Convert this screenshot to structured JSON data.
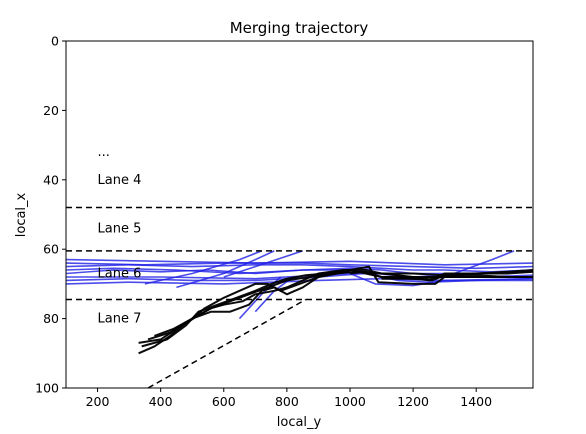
{
  "chart_data": {
    "type": "line",
    "title": "Merging trajectory",
    "xlabel": "local_y",
    "ylabel": "local_x",
    "xlim": [
      100,
      1580
    ],
    "ylim": [
      100,
      0
    ],
    "y_inverted": true,
    "x_ticks": [
      200,
      400,
      600,
      800,
      1000,
      1200,
      1400
    ],
    "y_ticks": [
      0,
      20,
      40,
      60,
      80,
      100
    ],
    "grid": false,
    "lane_boundaries": [
      48,
      60.5,
      74.5
    ],
    "ramp_edge": {
      "x": [
        360,
        860
      ],
      "y": [
        100,
        74.5
      ]
    },
    "lane_labels": [
      {
        "text": "...",
        "x": 200,
        "y": 32
      },
      {
        "text": "Lane 4",
        "x": 200,
        "y": 40
      },
      {
        "text": "Lane 5",
        "x": 200,
        "y": 54
      },
      {
        "text": "Lane 6",
        "x": 200,
        "y": 67
      },
      {
        "text": "Lane 7",
        "x": 200,
        "y": 80
      }
    ],
    "colors": {
      "mainline": "#1f1fe6",
      "merging": "#000000",
      "boundary": "#000000"
    },
    "series": [
      {
        "group": "mainline",
        "x": [
          100,
          250,
          400,
          550,
          700,
          850,
          1000,
          1080,
          1200,
          1300,
          1400,
          1580
        ],
        "y": [
          67,
          66,
          66.5,
          66,
          67,
          66,
          66,
          67,
          68,
          67.5,
          68,
          67.5
        ]
      },
      {
        "group": "mainline",
        "x": [
          100,
          300,
          500,
          700,
          850,
          1000,
          1100,
          1200,
          1300,
          1450,
          1580
        ],
        "y": [
          65,
          64.5,
          65,
          64.5,
          64.5,
          65,
          65.5,
          66,
          66,
          66.5,
          66
        ]
      },
      {
        "group": "mainline",
        "x": [
          100,
          300,
          500,
          700,
          900,
          1050,
          1150,
          1250,
          1400,
          1580
        ],
        "y": [
          69,
          68.5,
          69,
          69,
          68,
          67,
          69,
          69.5,
          69,
          68.5
        ]
      },
      {
        "group": "mainline",
        "x": [
          100,
          250,
          450,
          650,
          850,
          1000,
          1100,
          1200,
          1350,
          1580
        ],
        "y": [
          66,
          65.5,
          66,
          67,
          66,
          65.5,
          66,
          67,
          67,
          66.5
        ]
      },
      {
        "group": "mainline",
        "x": [
          100,
          400,
          700,
          1000,
          1080,
          1200,
          1300,
          1580
        ],
        "y": [
          68,
          68,
          68.5,
          67,
          70,
          70.5,
          69,
          68.5
        ]
      },
      {
        "group": "mainline",
        "x": [
          100,
          350,
          600,
          850,
          1000,
          1200,
          1400,
          1580
        ],
        "y": [
          64,
          64.5,
          64,
          64,
          64.5,
          65,
          65.5,
          65
        ]
      },
      {
        "group": "mainline",
        "x": [
          100,
          300,
          600,
          900,
          1100,
          1300,
          1580
        ],
        "y": [
          70,
          69.5,
          70,
          69,
          68.5,
          69,
          69
        ]
      },
      {
        "group": "mainline",
        "x": [
          100,
          400,
          700,
          1000,
          1300,
          1580
        ],
        "y": [
          63,
          63.5,
          64,
          63.5,
          64.5,
          64
        ]
      },
      {
        "group": "mainline",
        "x": [
          350,
          500,
          650,
          720
        ],
        "y": [
          70,
          67,
          63,
          60.5
        ]
      },
      {
        "group": "mainline",
        "x": [
          450,
          600,
          700,
          760
        ],
        "y": [
          71,
          67,
          63,
          60.5
        ]
      },
      {
        "group": "mainline",
        "x": [
          600,
          700,
          800,
          850
        ],
        "y": [
          68,
          65,
          62,
          60.5
        ]
      },
      {
        "group": "mainline",
        "x": [
          1300,
          1450,
          1520
        ],
        "y": [
          68,
          63,
          60.5
        ]
      },
      {
        "group": "mainline",
        "x": [
          650,
          720,
          780
        ],
        "y": [
          80,
          73,
          68
        ]
      },
      {
        "group": "mainline",
        "x": [
          700,
          760,
          820
        ],
        "y": [
          78,
          72,
          68
        ]
      },
      {
        "group": "merging",
        "x": [
          330,
          380,
          430,
          470,
          520,
          560,
          600,
          660,
          700,
          760,
          800,
          850,
          900,
          980,
          1050,
          1100,
          1200,
          1300,
          1400,
          1500,
          1580
        ],
        "y": [
          90,
          88,
          85,
          82,
          79,
          77,
          76,
          75,
          73,
          72,
          71,
          69,
          67,
          66,
          66,
          67,
          67,
          67.5,
          67,
          67,
          66.5
        ]
      },
      {
        "group": "merging",
        "x": [
          330,
          400,
          450,
          500,
          560,
          620,
          680,
          740,
          800,
          870,
          950,
          1020,
          1100,
          1200,
          1300,
          1400,
          1500,
          1580
        ],
        "y": [
          87,
          86,
          83,
          80,
          77,
          75,
          73,
          71,
          69,
          68,
          67,
          66.5,
          67,
          68,
          68,
          68,
          68,
          68
        ]
      },
      {
        "group": "merging",
        "x": [
          340,
          420,
          480,
          520,
          580,
          640,
          700,
          750,
          800,
          860,
          920,
          1000,
          1060,
          1090,
          1200,
          1270,
          1300,
          1400,
          1580
        ],
        "y": [
          88,
          86,
          82,
          78,
          76,
          74,
          72,
          70,
          68.5,
          67.5,
          67,
          66,
          65,
          69.5,
          70,
          70,
          68,
          68,
          68
        ]
      },
      {
        "group": "merging",
        "x": [
          360,
          430,
          500,
          540,
          600,
          650,
          700,
          740,
          780,
          840,
          900,
          1000,
          1100,
          1200,
          1300,
          1580
        ],
        "y": [
          86,
          84,
          80,
          77,
          74,
          72,
          70,
          70,
          72,
          70,
          68,
          66,
          68,
          68.5,
          68,
          68
        ]
      },
      {
        "group": "merging",
        "x": [
          380,
          440,
          500,
          560,
          620,
          680,
          720,
          760,
          800,
          850,
          900,
          960,
          1000
        ],
        "y": [
          85,
          83,
          80,
          78,
          78,
          76,
          72,
          71,
          73,
          71,
          68,
          67,
          66.5
        ]
      },
      {
        "group": "merging",
        "x": [
          1100,
          1200,
          1260,
          1300,
          1400,
          1500,
          1580
        ],
        "y": [
          68.5,
          68.5,
          69,
          67.5,
          67.5,
          68,
          68
        ]
      },
      {
        "group": "merging",
        "x": [
          1000,
          1050,
          1100,
          1200,
          1250,
          1300,
          1400,
          1500,
          1580
        ],
        "y": [
          67,
          66.5,
          68,
          68,
          69,
          67,
          67,
          66.5,
          66
        ]
      }
    ]
  }
}
